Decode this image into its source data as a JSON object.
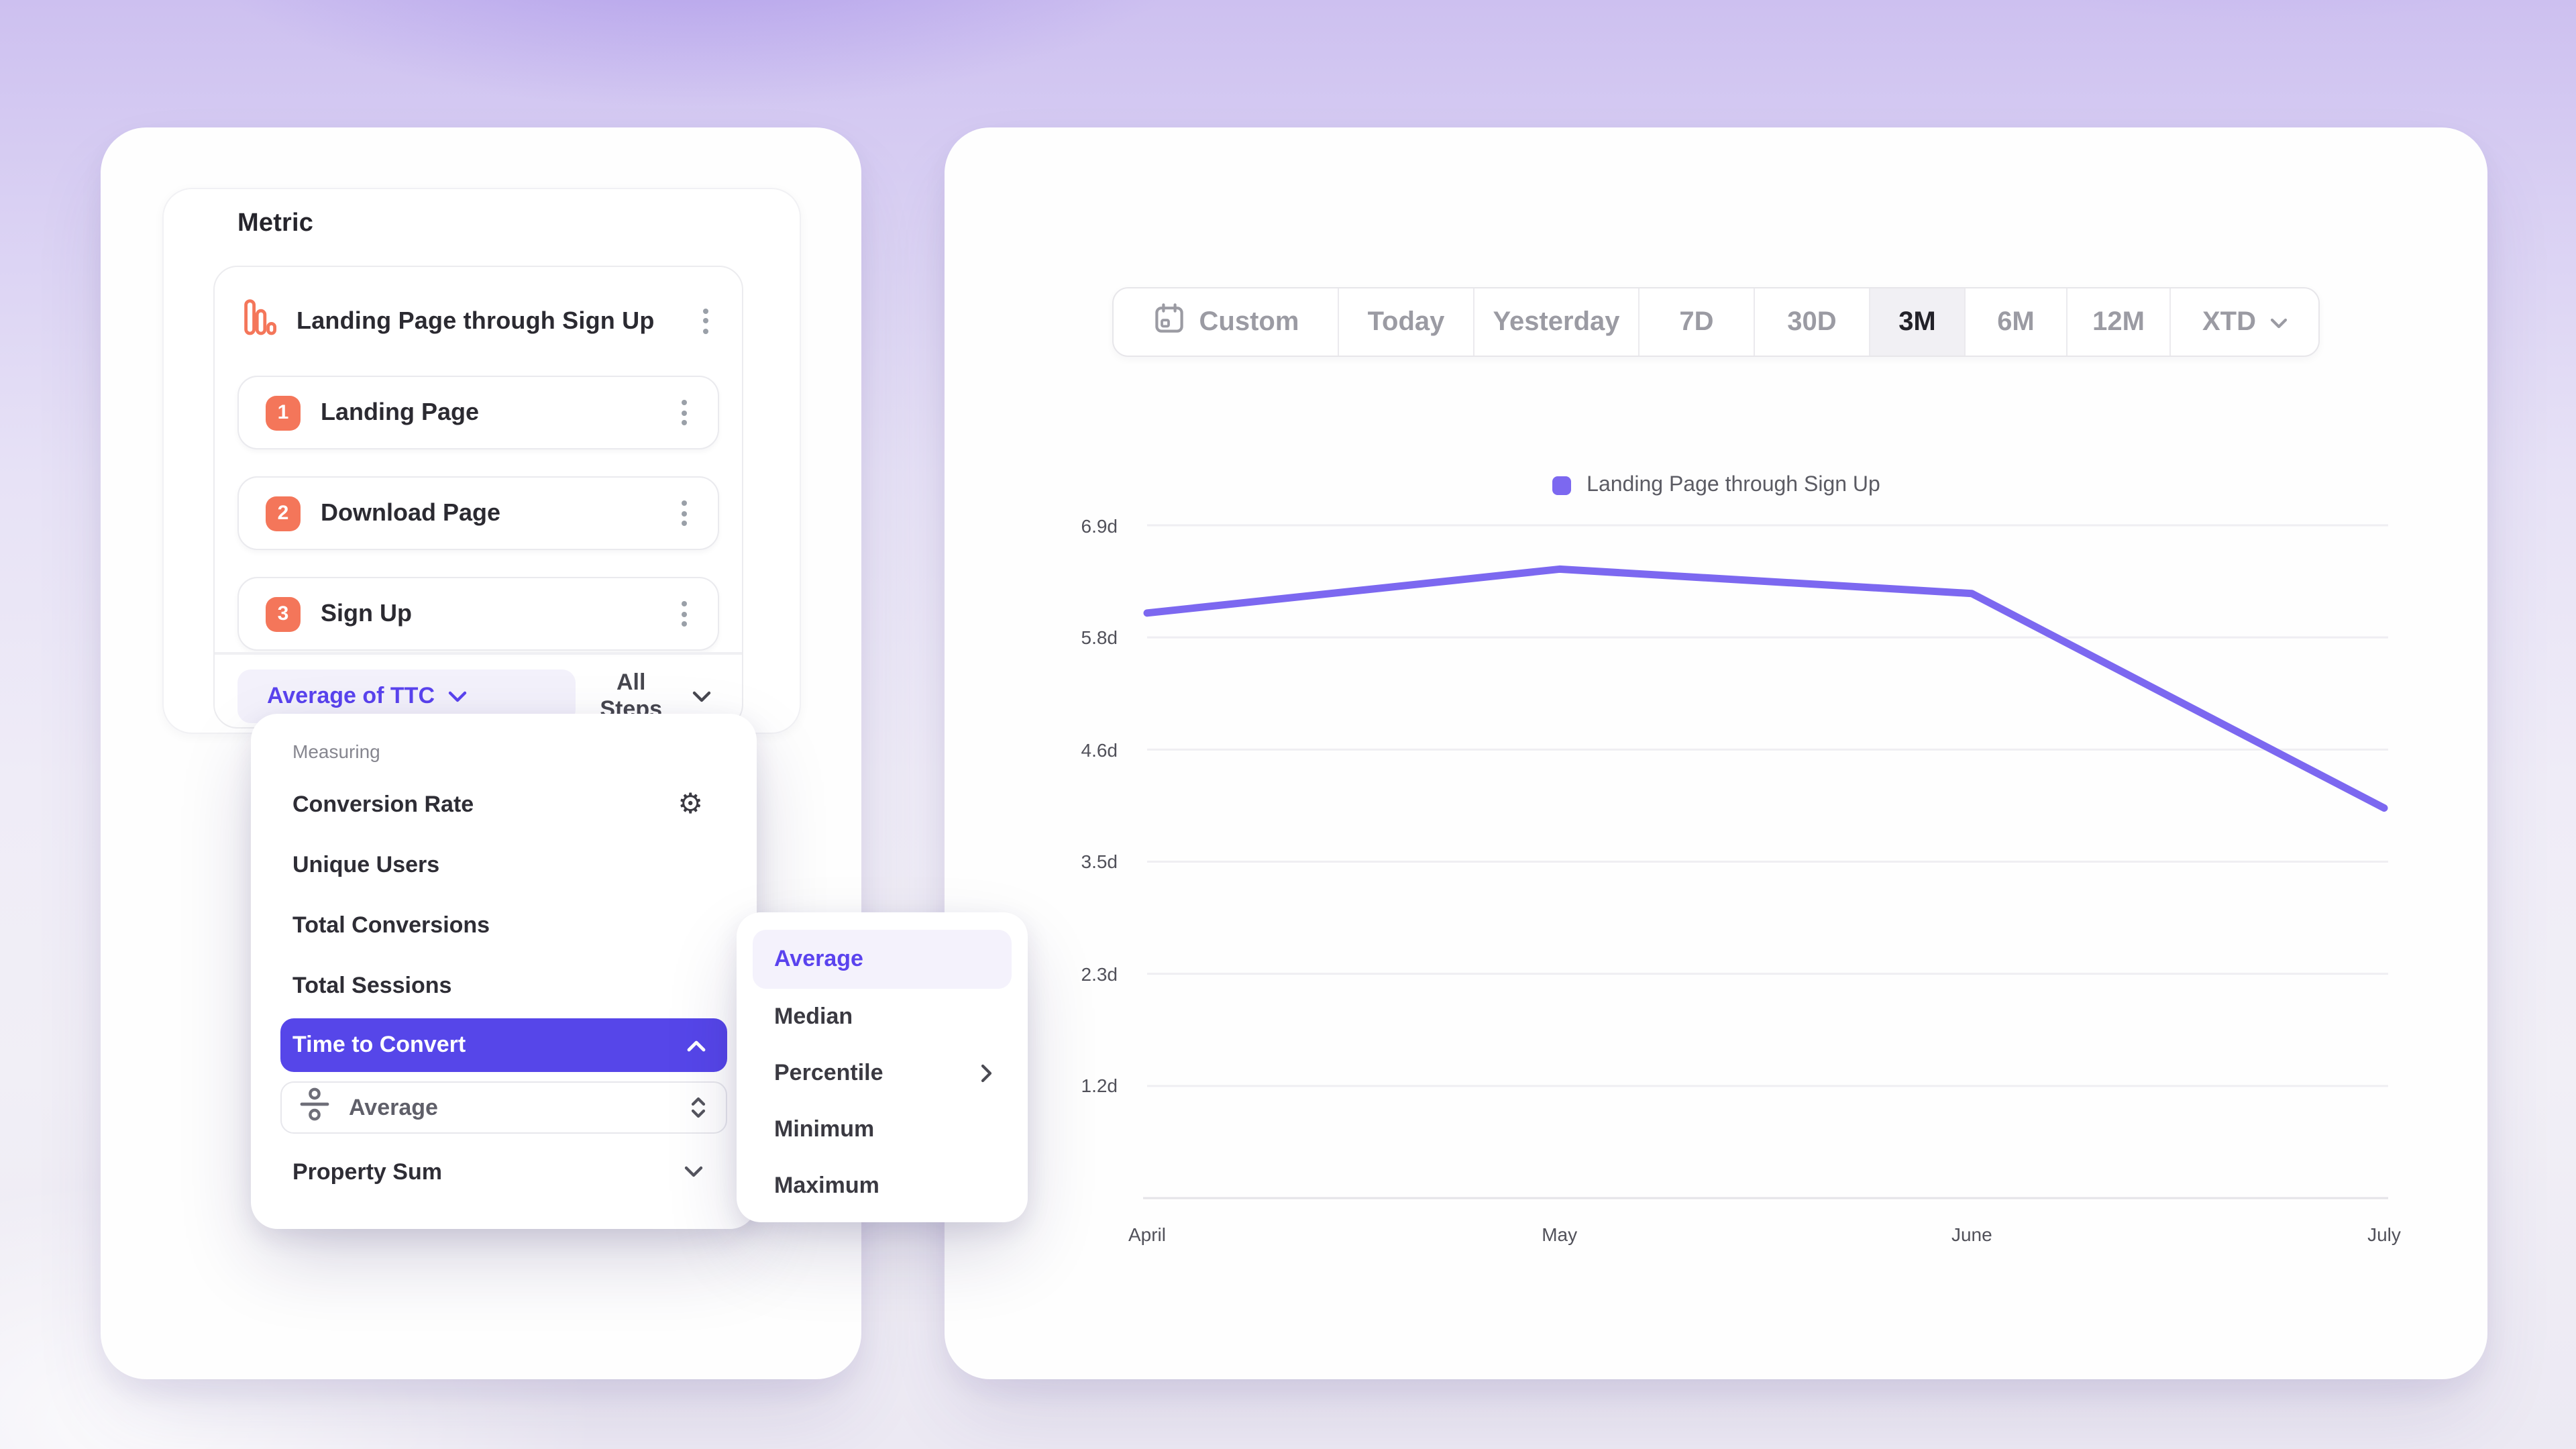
{
  "colors": {
    "accent_purple": "#5646e9",
    "accent_purple_text": "#5a43ee",
    "accent_purple_light_bg": "#f3f1fb",
    "chart_line_purple": "#7c68f0",
    "step_badge_orange": "#f4765a",
    "muted_text": "#9b9ba3",
    "dark_text": "#26252c"
  },
  "metric_panel": {
    "title": "Metric",
    "funnel": {
      "name": "Landing Page through Sign Up",
      "steps": [
        {
          "number": "1",
          "label": "Landing Page"
        },
        {
          "number": "2",
          "label": "Download Page"
        },
        {
          "number": "3",
          "label": "Sign Up"
        }
      ]
    },
    "footer": {
      "measurement_label": "Average of TTC",
      "steps_scope_label": "All Steps"
    }
  },
  "measuring_menu": {
    "section_label": "Measuring",
    "items": [
      "Conversion Rate",
      "Unique Users",
      "Total Conversions",
      "Total Sessions"
    ],
    "selected_item": "Time to Convert",
    "aggregation_value": "Average",
    "last_item": "Property Sum"
  },
  "aggregation_submenu": {
    "selected": "Average",
    "items": [
      "Average",
      "Median",
      "Percentile",
      "Minimum",
      "Maximum"
    ],
    "item_with_submenu": "Percentile"
  },
  "chart_panel": {
    "time_ranges": [
      "Custom",
      "Today",
      "Yesterday",
      "7D",
      "30D",
      "3M",
      "6M",
      "12M",
      "XTD"
    ],
    "selected_range": "3M",
    "legend_label": "Landing Page through Sign Up"
  },
  "chart_data": {
    "type": "line",
    "title": "",
    "x": [
      "April",
      "May",
      "June",
      "July"
    ],
    "series": [
      {
        "name": "Landing Page through Sign Up",
        "color": "#7c68f0",
        "values": [
          6.0,
          6.45,
          6.2,
          4.0
        ]
      }
    ],
    "unit": "days",
    "y_ticks": [
      {
        "value": 6.9,
        "label": "6.9d"
      },
      {
        "value": 5.75,
        "label": "5.8d"
      },
      {
        "value": 4.6,
        "label": "4.6d"
      },
      {
        "value": 3.45,
        "label": "3.5d"
      },
      {
        "value": 2.3,
        "label": "2.3d"
      },
      {
        "value": 1.15,
        "label": "1.2d"
      }
    ],
    "ylim": [
      0,
      6.9
    ],
    "grid": true,
    "legend_position": "top"
  }
}
